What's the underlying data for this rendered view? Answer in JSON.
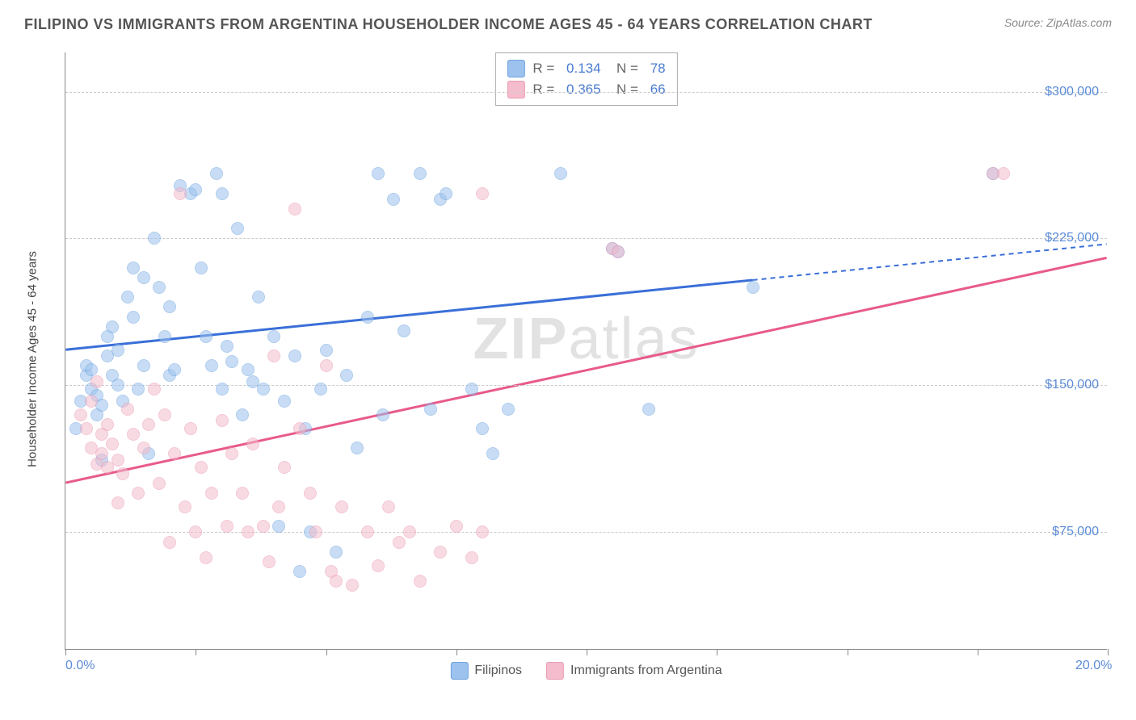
{
  "header": {
    "title": "FILIPINO VS IMMIGRANTS FROM ARGENTINA HOUSEHOLDER INCOME AGES 45 - 64 YEARS CORRELATION CHART",
    "source": "Source: ZipAtlas.com"
  },
  "chart": {
    "type": "scatter",
    "ylabel": "Householder Income Ages 45 - 64 years",
    "watermark": "ZIPatlas",
    "background_color": "#ffffff",
    "grid_color": "#cccccc",
    "axis_color": "#888888",
    "label_color": "#5b8bd8",
    "title_fontsize": 18,
    "label_fontsize": 15,
    "tick_fontsize": 16,
    "xlim": [
      0,
      20
    ],
    "ylim": [
      15000,
      320000
    ],
    "xtick_positions": [
      0,
      2.5,
      5,
      7.5,
      10,
      12.5,
      15,
      17.5,
      20
    ],
    "xtick_labels": {
      "0": "0.0%",
      "20": "20.0%"
    },
    "ytick_positions": [
      75000,
      150000,
      225000,
      300000
    ],
    "ytick_labels": [
      "$75,000",
      "$150,000",
      "$225,000",
      "$300,000"
    ],
    "marker_radius": 8,
    "marker_opacity": 0.55,
    "line_width": 3,
    "series": [
      {
        "name": "Filipinos",
        "color": "#9cc2ed",
        "stroke": "#6fa3e0",
        "line_color": "#3a6fd8",
        "R": "0.134",
        "N": "78",
        "trend": {
          "x1": 0,
          "y1": 168000,
          "x2": 20,
          "y2": 222000,
          "solid_until_x": 13.2
        },
        "points": [
          [
            0.2,
            128000
          ],
          [
            0.3,
            142000
          ],
          [
            0.4,
            155000
          ],
          [
            0.4,
            160000
          ],
          [
            0.5,
            158000
          ],
          [
            0.5,
            148000
          ],
          [
            0.6,
            145000
          ],
          [
            0.6,
            135000
          ],
          [
            0.7,
            112000
          ],
          [
            0.7,
            140000
          ],
          [
            0.8,
            175000
          ],
          [
            0.8,
            165000
          ],
          [
            0.9,
            180000
          ],
          [
            0.9,
            155000
          ],
          [
            1.0,
            168000
          ],
          [
            1.0,
            150000
          ],
          [
            1.1,
            142000
          ],
          [
            1.2,
            195000
          ],
          [
            1.3,
            210000
          ],
          [
            1.3,
            185000
          ],
          [
            1.4,
            148000
          ],
          [
            1.5,
            205000
          ],
          [
            1.5,
            160000
          ],
          [
            1.6,
            115000
          ],
          [
            1.7,
            225000
          ],
          [
            1.8,
            200000
          ],
          [
            1.9,
            175000
          ],
          [
            2.0,
            190000
          ],
          [
            2.0,
            155000
          ],
          [
            2.1,
            158000
          ],
          [
            2.2,
            252000
          ],
          [
            2.4,
            248000
          ],
          [
            2.5,
            250000
          ],
          [
            2.6,
            210000
          ],
          [
            2.7,
            175000
          ],
          [
            2.8,
            160000
          ],
          [
            2.9,
            258000
          ],
          [
            3.0,
            248000
          ],
          [
            3.0,
            148000
          ],
          [
            3.1,
            170000
          ],
          [
            3.2,
            162000
          ],
          [
            3.3,
            230000
          ],
          [
            3.4,
            135000
          ],
          [
            3.5,
            158000
          ],
          [
            3.6,
            152000
          ],
          [
            3.7,
            195000
          ],
          [
            3.8,
            148000
          ],
          [
            4.0,
            175000
          ],
          [
            4.1,
            78000
          ],
          [
            4.2,
            142000
          ],
          [
            4.4,
            165000
          ],
          [
            4.5,
            55000
          ],
          [
            4.6,
            128000
          ],
          [
            4.7,
            75000
          ],
          [
            4.9,
            148000
          ],
          [
            5.0,
            168000
          ],
          [
            5.2,
            65000
          ],
          [
            5.4,
            155000
          ],
          [
            5.6,
            118000
          ],
          [
            5.8,
            185000
          ],
          [
            6.0,
            258000
          ],
          [
            6.1,
            135000
          ],
          [
            6.3,
            245000
          ],
          [
            6.5,
            178000
          ],
          [
            6.8,
            258000
          ],
          [
            7.0,
            138000
          ],
          [
            7.2,
            245000
          ],
          [
            7.3,
            248000
          ],
          [
            7.8,
            148000
          ],
          [
            8.0,
            128000
          ],
          [
            8.2,
            115000
          ],
          [
            8.5,
            138000
          ],
          [
            9.5,
            258000
          ],
          [
            10.5,
            220000
          ],
          [
            10.6,
            218000
          ],
          [
            11.2,
            138000
          ],
          [
            13.2,
            200000
          ],
          [
            17.8,
            258000
          ]
        ]
      },
      {
        "name": "Immigrants from Argentina",
        "color": "#f4bccc",
        "stroke": "#ea9bb3",
        "line_color": "#e85a8a",
        "R": "0.365",
        "N": "66",
        "trend": {
          "x1": 0,
          "y1": 100000,
          "x2": 20,
          "y2": 215000,
          "solid_until_x": 20
        },
        "points": [
          [
            0.3,
            135000
          ],
          [
            0.4,
            128000
          ],
          [
            0.5,
            118000
          ],
          [
            0.5,
            142000
          ],
          [
            0.6,
            110000
          ],
          [
            0.6,
            152000
          ],
          [
            0.7,
            125000
          ],
          [
            0.7,
            115000
          ],
          [
            0.8,
            108000
          ],
          [
            0.8,
            130000
          ],
          [
            0.9,
            120000
          ],
          [
            1.0,
            112000
          ],
          [
            1.0,
            90000
          ],
          [
            1.1,
            105000
          ],
          [
            1.2,
            138000
          ],
          [
            1.3,
            125000
          ],
          [
            1.4,
            95000
          ],
          [
            1.5,
            118000
          ],
          [
            1.6,
            130000
          ],
          [
            1.7,
            148000
          ],
          [
            1.8,
            100000
          ],
          [
            1.9,
            135000
          ],
          [
            2.0,
            70000
          ],
          [
            2.1,
            115000
          ],
          [
            2.2,
            248000
          ],
          [
            2.3,
            88000
          ],
          [
            2.4,
            128000
          ],
          [
            2.5,
            75000
          ],
          [
            2.6,
            108000
          ],
          [
            2.7,
            62000
          ],
          [
            2.8,
            95000
          ],
          [
            3.0,
            132000
          ],
          [
            3.1,
            78000
          ],
          [
            3.2,
            115000
          ],
          [
            3.4,
            95000
          ],
          [
            3.5,
            75000
          ],
          [
            3.6,
            120000
          ],
          [
            3.8,
            78000
          ],
          [
            3.9,
            60000
          ],
          [
            4.0,
            165000
          ],
          [
            4.1,
            88000
          ],
          [
            4.2,
            108000
          ],
          [
            4.4,
            240000
          ],
          [
            4.5,
            128000
          ],
          [
            4.7,
            95000
          ],
          [
            4.8,
            75000
          ],
          [
            5.0,
            160000
          ],
          [
            5.1,
            55000
          ],
          [
            5.2,
            50000
          ],
          [
            5.3,
            88000
          ],
          [
            5.5,
            48000
          ],
          [
            5.8,
            75000
          ],
          [
            6.0,
            58000
          ],
          [
            6.2,
            88000
          ],
          [
            6.4,
            70000
          ],
          [
            6.6,
            75000
          ],
          [
            6.8,
            50000
          ],
          [
            7.2,
            65000
          ],
          [
            7.5,
            78000
          ],
          [
            7.8,
            62000
          ],
          [
            8.0,
            248000
          ],
          [
            8.0,
            75000
          ],
          [
            10.5,
            220000
          ],
          [
            10.6,
            218000
          ],
          [
            17.8,
            258000
          ],
          [
            18.0,
            258000
          ]
        ]
      }
    ],
    "bottom_legend": [
      {
        "label": "Filipinos",
        "swatch": "#9cc2ed",
        "stroke": "#6fa3e0"
      },
      {
        "label": "Immigrants from Argentina",
        "swatch": "#f4bccc",
        "stroke": "#ea9bb3"
      }
    ]
  }
}
